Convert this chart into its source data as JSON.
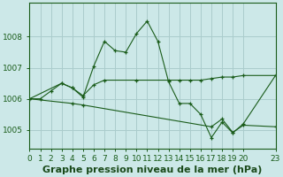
{
  "title": "Graphe pression niveau de la mer (hPa)",
  "background_color": "#cce8e8",
  "grid_color": "#aacccc",
  "line_color": "#1a5c1a",
  "xlim": [
    0,
    23
  ],
  "ylim": [
    1004.4,
    1009.1
  ],
  "yticks": [
    1005,
    1006,
    1007,
    1008
  ],
  "xticks": [
    0,
    1,
    2,
    3,
    4,
    5,
    6,
    7,
    8,
    9,
    10,
    11,
    12,
    13,
    14,
    15,
    16,
    17,
    18,
    19,
    20,
    23
  ],
  "series1_x": [
    0,
    1,
    2,
    3,
    4,
    5,
    6,
    7,
    8,
    9,
    10,
    11,
    12,
    13,
    14,
    15,
    16,
    17,
    18,
    19,
    20,
    23
  ],
  "series1_y": [
    1006.0,
    1006.0,
    1006.25,
    1006.5,
    1006.35,
    1006.05,
    1007.05,
    1007.85,
    1007.55,
    1007.5,
    1008.1,
    1008.5,
    1007.85,
    1006.55,
    1005.85,
    1005.85,
    1005.5,
    1004.75,
    1005.25,
    1004.9,
    1005.2,
    1006.75
  ],
  "series2_x": [
    0,
    3,
    4,
    5,
    6,
    7,
    10,
    13,
    14,
    15,
    16,
    17,
    18,
    19,
    20,
    23
  ],
  "series2_y": [
    1006.0,
    1006.5,
    1006.35,
    1006.1,
    1006.45,
    1006.6,
    1006.6,
    1006.6,
    1006.6,
    1006.6,
    1006.6,
    1006.65,
    1006.7,
    1006.7,
    1006.75,
    1006.75
  ],
  "series3_x": [
    0,
    4,
    5,
    17,
    18,
    19,
    20,
    23
  ],
  "series3_y": [
    1006.0,
    1005.85,
    1005.8,
    1005.1,
    1005.35,
    1004.92,
    1005.15,
    1005.1
  ],
  "title_fontsize": 8,
  "tick_fontsize": 6.5
}
